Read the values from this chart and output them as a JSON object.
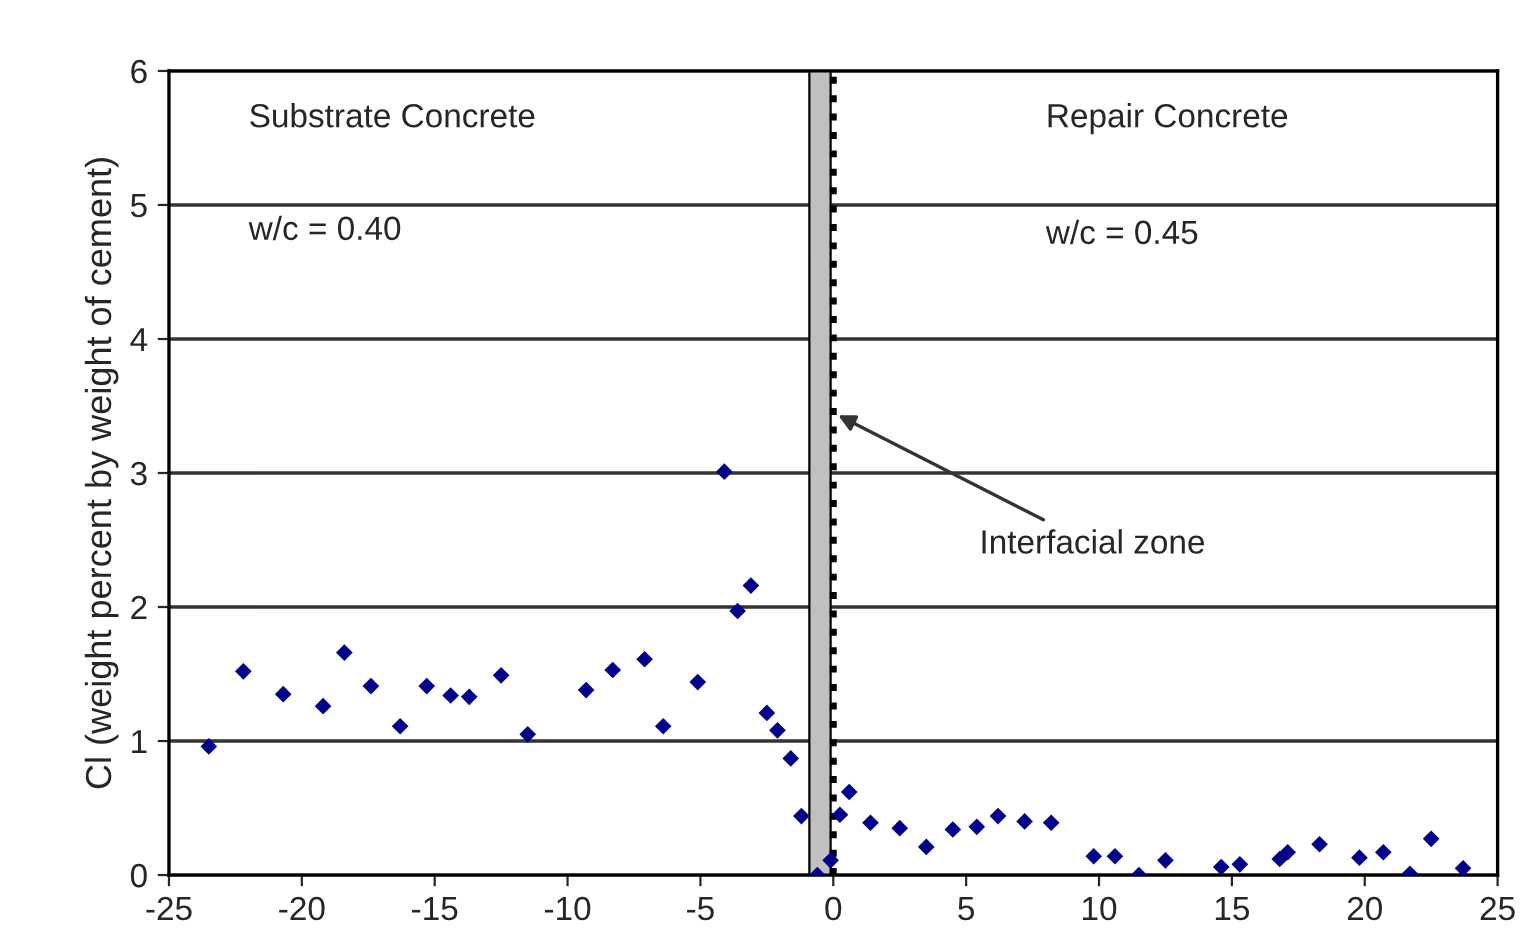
{
  "chart_data": {
    "type": "scatter",
    "ylabel": "Cl (weight percent by weight of cement)",
    "x": [
      -23.5,
      -22.2,
      -20.7,
      -19.2,
      -18.4,
      -17.4,
      -16.3,
      -15.3,
      -14.4,
      -13.7,
      -12.5,
      -11.5,
      -9.3,
      -8.3,
      -7.1,
      -6.4,
      -5.1,
      -4.1,
      -3.6,
      -3.1,
      -2.5,
      -2.1,
      -1.6,
      -1.2,
      -0.6,
      -0.1,
      0.25,
      0.6,
      1.4,
      2.5,
      3.5,
      4.5,
      5.4,
      6.2,
      7.2,
      8.2,
      9.8,
      10.6,
      11.5,
      12.5,
      14.6,
      15.3,
      16.8,
      17.1,
      18.3,
      19.8,
      20.7,
      21.7,
      22.5,
      23.7
    ],
    "series": [
      {
        "color": "#00008b",
        "values": [
          0.96,
          1.52,
          1.35,
          1.26,
          1.66,
          1.41,
          1.11,
          1.41,
          1.34,
          1.33,
          1.49,
          1.05,
          1.38,
          1.53,
          1.61,
          1.11,
          1.44,
          3.01,
          1.97,
          2.16,
          1.21,
          1.08,
          0.87,
          0.44,
          0.0,
          0.11,
          0.45,
          0.62,
          0.39,
          0.35,
          0.21,
          0.34,
          0.36,
          0.44,
          0.4,
          0.39,
          0.14,
          0.14,
          0.0,
          0.11,
          0.06,
          0.08,
          0.12,
          0.17,
          0.23,
          0.13,
          0.17,
          0.01,
          0.27,
          0.05
        ]
      }
    ],
    "xlim": [
      -25,
      25
    ],
    "xticks": [
      -25,
      -20,
      -15,
      -10,
      -5,
      0,
      5,
      10,
      15,
      20,
      25
    ],
    "ylim": [
      0,
      6
    ],
    "yticks": [
      0,
      1,
      2,
      3,
      4,
      5,
      6
    ],
    "grid": "y",
    "marker": "diamond",
    "bands": [
      {
        "axis": "x",
        "from": -0.9,
        "to": -0.1,
        "color": "#c0c0c0"
      }
    ],
    "ref_lines": [
      {
        "axis": "x",
        "value": 0,
        "line_style": "dotted",
        "color": "#000000"
      }
    ],
    "annotations": [
      "Substrate Concrete",
      "w/c = 0.40",
      "Repair Concrete",
      "w/c = 0.45",
      {
        "text": "Interfacial zone",
        "x": 0,
        "y": 3.45
      }
    ]
  }
}
